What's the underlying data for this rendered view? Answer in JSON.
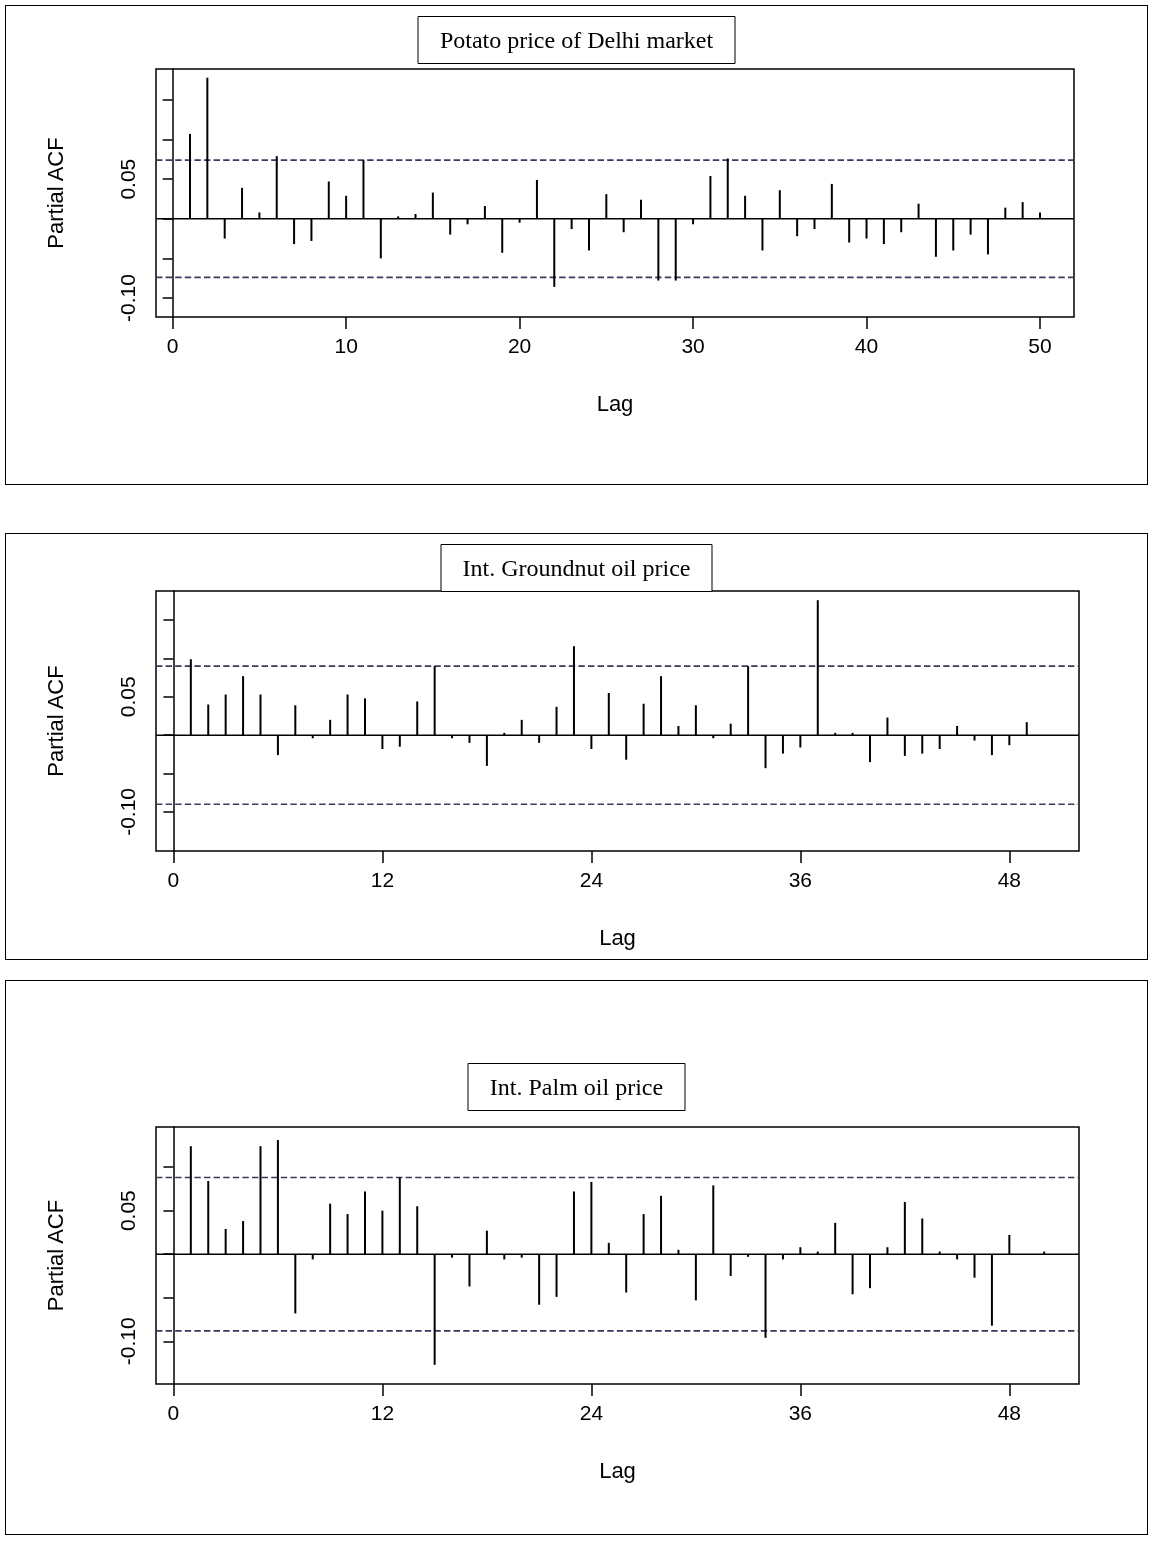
{
  "chart_data": [
    {
      "type": "bar",
      "title": "Potato price of Delhi market",
      "xlabel": "Lag",
      "ylabel": "Partial ACF",
      "x": [
        1,
        2,
        3,
        4,
        5,
        6,
        7,
        8,
        9,
        10,
        11,
        12,
        13,
        14,
        15,
        16,
        17,
        18,
        19,
        20,
        21,
        22,
        23,
        24,
        25,
        26,
        27,
        28,
        29,
        30,
        31,
        32,
        33,
        34,
        35,
        36,
        37,
        38,
        39,
        40,
        41,
        42,
        43,
        44,
        45,
        46,
        47,
        48,
        49,
        50
      ],
      "series": [
        {
          "color": "#000000",
          "values": [
            0.107,
            0.178,
            -0.025,
            0.039,
            0.008,
            0.079,
            -0.032,
            -0.028,
            0.047,
            0.029,
            0.074,
            -0.05,
            0.003,
            0.006,
            0.033,
            -0.02,
            -0.007,
            0.016,
            -0.043,
            -0.005,
            0.049,
            -0.086,
            -0.013,
            -0.04,
            0.031,
            -0.017,
            0.024,
            -0.078,
            -0.078,
            -0.007,
            0.054,
            0.076,
            0.029,
            -0.04,
            0.036,
            -0.022,
            -0.013,
            0.044,
            -0.03,
            -0.025,
            -0.032,
            -0.017,
            0.019,
            -0.048,
            -0.04,
            -0.02,
            -0.045,
            0.014,
            0.021,
            0.008
          ]
        }
      ],
      "xlim": [
        -0.96,
        51.96
      ],
      "xticks": [
        0,
        10,
        20,
        30,
        40,
        50
      ],
      "ylim": [
        -0.124,
        0.189
      ],
      "yticks": [
        {
          "value": -0.1,
          "label": "-0.10"
        },
        {
          "value": -0.05,
          "label": null
        },
        {
          "value": 0,
          "label": null
        },
        {
          "value": 0.05,
          "label": "0.05"
        },
        {
          "value": 0.1,
          "label": null
        },
        {
          "value": 0.15,
          "label": null
        }
      ],
      "ref_lines": [
        {
          "axis": "y",
          "value": 0,
          "color": "#000000",
          "line_style": "solid"
        },
        {
          "axis": "y",
          "value": 0.074,
          "color": "#3a3a5c",
          "line_style": "dashed"
        },
        {
          "axis": "y",
          "value": -0.074,
          "color": "#3a3a5c",
          "line_style": "dashed"
        }
      ]
    },
    {
      "type": "bar",
      "title": "Int. Groundnut oil price",
      "xlabel": "Lag",
      "ylabel": "Partial ACF",
      "x": [
        1,
        2,
        3,
        4,
        5,
        6,
        7,
        8,
        9,
        10,
        11,
        12,
        13,
        14,
        15,
        16,
        17,
        18,
        19,
        20,
        21,
        22,
        23,
        24,
        25,
        26,
        27,
        28,
        29,
        30,
        31,
        32,
        33,
        34,
        35,
        36,
        37,
        38,
        39,
        40,
        41,
        42,
        43,
        44,
        45,
        46,
        47,
        48,
        49
      ],
      "series": [
        {
          "color": "#000000",
          "values": [
            0.099,
            0.04,
            0.053,
            0.077,
            0.053,
            -0.026,
            0.039,
            -0.004,
            0.02,
            0.053,
            0.048,
            -0.018,
            -0.015,
            0.044,
            0.09,
            -0.004,
            -0.01,
            -0.04,
            0.003,
            0.02,
            -0.01,
            0.037,
            0.116,
            -0.018,
            0.055,
            -0.032,
            0.041,
            0.077,
            0.012,
            0.039,
            -0.004,
            0.015,
            0.09,
            -0.043,
            -0.024,
            -0.016,
            0.176,
            0.003,
            0.003,
            -0.035,
            0.023,
            -0.027,
            -0.024,
            -0.018,
            0.012,
            -0.007,
            -0.026,
            -0.013,
            0.017
          ]
        }
      ],
      "xlim": [
        -1,
        52
      ],
      "xticks": [
        0,
        12,
        24,
        36,
        48
      ],
      "ylim": [
        -0.151,
        0.188
      ],
      "yticks": [
        {
          "value": -0.1,
          "label": "-0.10"
        },
        {
          "value": -0.05,
          "label": null
        },
        {
          "value": 0,
          "label": null
        },
        {
          "value": 0.05,
          "label": "0.05"
        },
        {
          "value": 0.1,
          "label": null
        },
        {
          "value": 0.15,
          "label": null
        }
      ],
      "ref_lines": [
        {
          "axis": "y",
          "value": 0,
          "color": "#000000",
          "line_style": "solid"
        },
        {
          "axis": "y",
          "value": 0.09,
          "color": "#3a3a5c",
          "line_style": "dashed"
        },
        {
          "axis": "y",
          "value": -0.09,
          "color": "#3a3a5c",
          "line_style": "dashed"
        }
      ]
    },
    {
      "type": "bar",
      "title": "Int. Palm oil price",
      "xlabel": "Lag",
      "ylabel": "Partial ACF",
      "x": [
        1,
        2,
        3,
        4,
        5,
        6,
        7,
        8,
        9,
        10,
        11,
        12,
        13,
        14,
        15,
        16,
        17,
        18,
        19,
        20,
        21,
        22,
        23,
        24,
        25,
        26,
        27,
        28,
        29,
        30,
        31,
        32,
        33,
        34,
        35,
        36,
        37,
        38,
        39,
        40,
        41,
        42,
        43,
        44,
        45,
        46,
        47,
        48,
        49,
        50
      ],
      "series": [
        {
          "color": "#000000",
          "values": [
            0.124,
            0.084,
            0.029,
            0.038,
            0.124,
            0.131,
            -0.068,
            -0.006,
            0.058,
            0.046,
            0.072,
            0.05,
            0.088,
            0.055,
            -0.127,
            -0.004,
            -0.037,
            0.027,
            -0.006,
            -0.004,
            -0.058,
            -0.049,
            0.072,
            0.083,
            0.013,
            -0.044,
            0.046,
            0.067,
            0.005,
            -0.053,
            0.079,
            -0.025,
            -0.003,
            -0.096,
            -0.006,
            0.008,
            0.003,
            0.036,
            -0.046,
            -0.039,
            0.008,
            0.06,
            0.041,
            0.003,
            -0.006,
            -0.027,
            -0.082,
            0.022,
            0,
            0.003
          ]
        }
      ],
      "xlim": [
        -1,
        52
      ],
      "xticks": [
        0,
        12,
        24,
        36,
        48
      ],
      "ylim": [
        -0.149,
        0.146
      ],
      "yticks": [
        {
          "value": -0.1,
          "label": "-0.10"
        },
        {
          "value": -0.05,
          "label": null
        },
        {
          "value": 0,
          "label": null
        },
        {
          "value": 0.05,
          "label": "0.05"
        },
        {
          "value": 0.1,
          "label": null
        }
      ],
      "ref_lines": [
        {
          "axis": "y",
          "value": 0,
          "color": "#000000",
          "line_style": "solid"
        },
        {
          "axis": "y",
          "value": 0.088,
          "color": "#3a3a5c",
          "line_style": "dashed"
        },
        {
          "axis": "y",
          "value": -0.088,
          "color": "#3a3a5c",
          "line_style": "dashed"
        }
      ]
    }
  ]
}
